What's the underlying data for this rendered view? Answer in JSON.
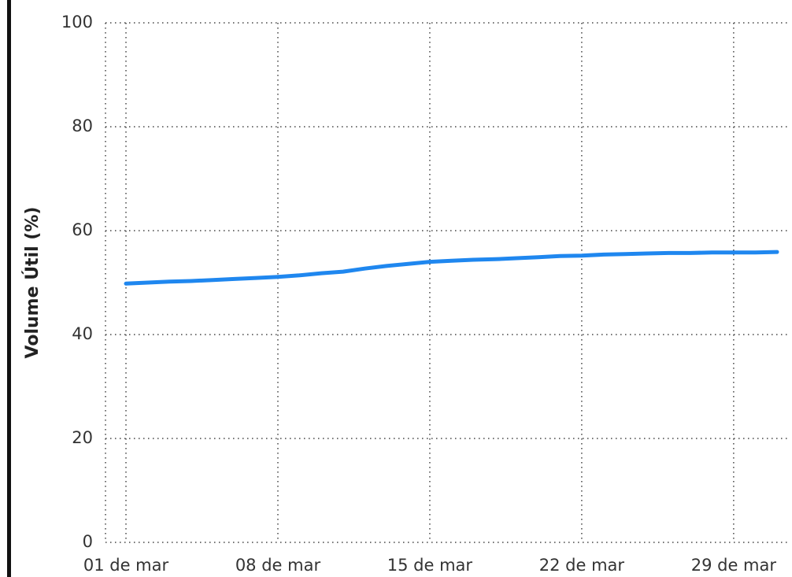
{
  "chart_data": {
    "type": "line",
    "y_label": "Volume Útil (%)",
    "categories": [
      "01 de mar",
      null,
      null,
      null,
      null,
      null,
      null,
      "08 de mar",
      null,
      null,
      null,
      null,
      null,
      null,
      "15 de mar",
      null,
      null,
      null,
      null,
      null,
      null,
      "22 de mar",
      null,
      null,
      null,
      null,
      null,
      null,
      "29 de mar",
      null,
      null
    ],
    "series": [
      {
        "color": "#1f87ef",
        "values": [
          49.8,
          50.0,
          50.2,
          50.3,
          50.5,
          50.7,
          50.9,
          51.1,
          51.4,
          51.8,
          52.1,
          52.7,
          53.2,
          53.6,
          54.0,
          54.2,
          54.4,
          54.5,
          54.7,
          54.9,
          55.1,
          55.2,
          55.4,
          55.5,
          55.6,
          55.7,
          55.7,
          55.8,
          55.8,
          55.8,
          55.9
        ]
      }
    ],
    "ylim": [
      0,
      100
    ],
    "yticks": [
      0,
      20,
      40,
      60,
      80,
      100
    ],
    "grid": true
  }
}
